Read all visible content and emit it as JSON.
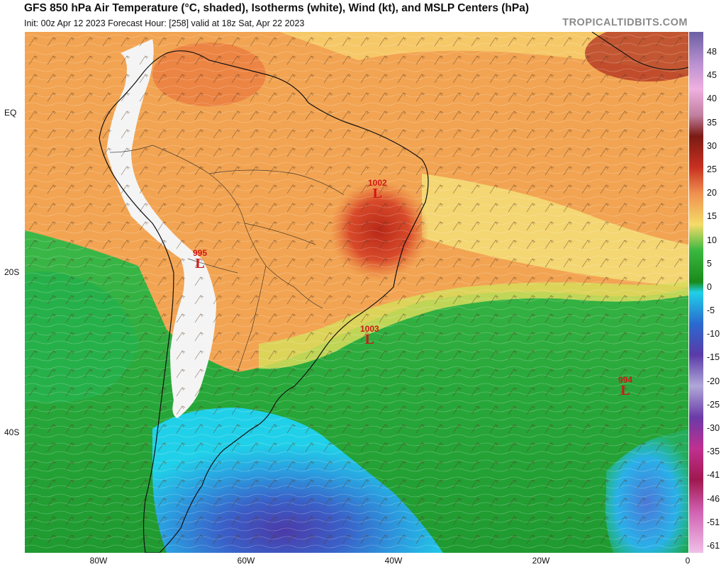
{
  "header": {
    "title": "GFS 850 hPa Air Temperature (°C, shaded), Isotherms (white), Wind (kt), and MSLP Centers (hPa)",
    "subtitle": "Init: 00z Apr 12 2023   Forecast Hour: [258]   valid at 18z Sat, Apr 22 2023",
    "brand": "TROPICALTIDBITS.COM"
  },
  "axes": {
    "lat_labels": [
      "EQ",
      "20S",
      "40S"
    ],
    "lon_labels": [
      "80W",
      "60W",
      "40W",
      "20W",
      "0"
    ]
  },
  "pressure_centers": [
    {
      "type": "L",
      "value": "1002"
    },
    {
      "type": "L",
      "value": "995"
    },
    {
      "type": "L",
      "value": "1003"
    },
    {
      "type": "L",
      "value": "994"
    }
  ],
  "colorbar": {
    "labels": [
      "48",
      "45",
      "40",
      "35",
      "30",
      "25",
      "20",
      "15",
      "10",
      "5",
      "0",
      "-5",
      "-10",
      "-15",
      "-20",
      "-25",
      "-30",
      "-35",
      "-41",
      "-46",
      "-51",
      "-61"
    ],
    "colors": {
      "top": "#6b5fa3",
      "hot_pink": "#e0a0d8",
      "dark_red": "#8a1a14",
      "red": "#c83020",
      "orange": "#f0a050",
      "yellow": "#f4dc68",
      "green": "#2aa838",
      "dark_green": "#1a7a1a",
      "cyan": "#20c8e8",
      "blue": "#2a6ad0",
      "purple": "#5a3aa8",
      "magenta": "#c03090",
      "bottom_pink": "#f0c0e8"
    }
  }
}
